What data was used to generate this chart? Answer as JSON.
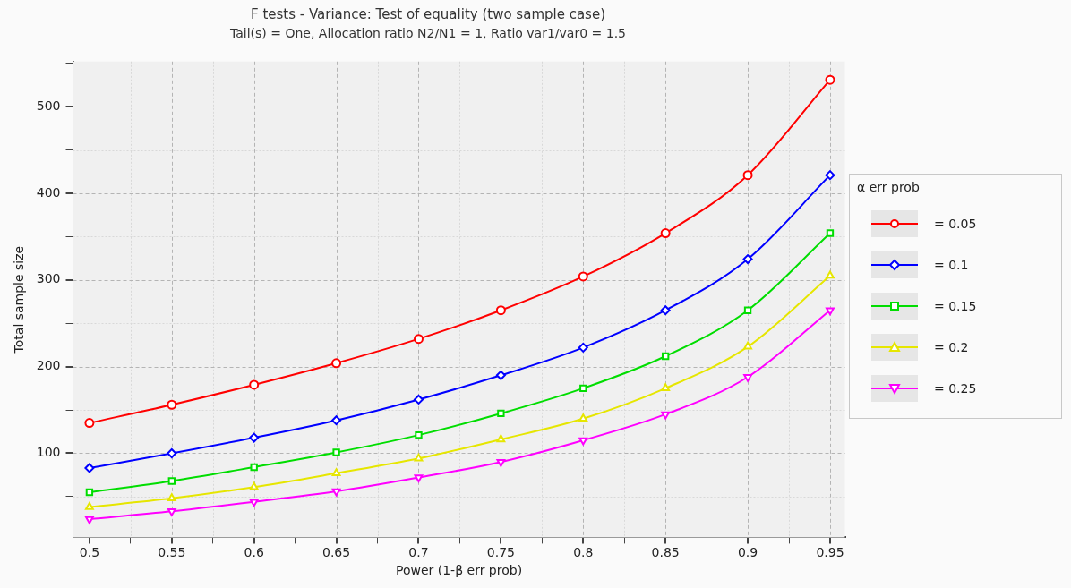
{
  "chart_data": {
    "type": "line",
    "title": "F tests - Variance: Test of equality (two sample case)",
    "subtitle": "Tail(s) = One, Allocation ratio N2/N1 = 1, Ratio var1/var0 = 1.5",
    "xlabel": "Power (1-β err prob)",
    "ylabel": "Total sample size",
    "legend_title": "α err prob",
    "legend": "right",
    "grid": true,
    "line_style": "solid",
    "x": [
      0.5,
      0.55,
      0.6,
      0.65,
      0.7,
      0.75,
      0.8,
      0.85,
      0.9,
      0.95
    ],
    "xlim": [
      0.49,
      0.959
    ],
    "xticks": [
      0.5,
      {
        "value": 0.525,
        "label": null
      },
      0.55,
      {
        "value": 0.575,
        "label": null
      },
      0.6,
      {
        "value": 0.625,
        "label": null
      },
      0.65,
      {
        "value": 0.675,
        "label": null
      },
      0.7,
      {
        "value": 0.725,
        "label": null
      },
      0.75,
      {
        "value": 0.775,
        "label": null
      },
      0.8,
      {
        "value": 0.825,
        "label": null
      },
      0.85,
      {
        "value": 0.875,
        "label": null
      },
      0.9,
      {
        "value": 0.925,
        "label": null
      },
      0.95
    ],
    "ylim": [
      3,
      552
    ],
    "yticks": [
      {
        "value": 50,
        "label": null
      },
      100,
      {
        "value": 150,
        "label": null
      },
      200,
      {
        "value": 250,
        "label": null
      },
      300,
      {
        "value": 350,
        "label": null
      },
      400,
      {
        "value": 450,
        "label": null
      },
      500,
      {
        "value": 550,
        "label": null
      }
    ],
    "series": [
      {
        "name": "= 0.05",
        "color": "#ff0000",
        "marker": "circle",
        "values": [
          135,
          156,
          179,
          204,
          232,
          265,
          304,
          354,
          421,
          531
        ]
      },
      {
        "name": "= 0.1",
        "color": "#0000ff",
        "marker": "diamond",
        "values": [
          83,
          100,
          118,
          138,
          162,
          190,
          222,
          265,
          324,
          421
        ]
      },
      {
        "name": "= 0.15",
        "color": "#00dd00",
        "marker": "square",
        "values": [
          55,
          68,
          84,
          101,
          121,
          146,
          175,
          212,
          265,
          354
        ]
      },
      {
        "name": "= 0.2",
        "color": "#e6e600",
        "marker": "triangle",
        "values": [
          38,
          48,
          61,
          77,
          94,
          116,
          140,
          175,
          223,
          305
        ]
      },
      {
        "name": "= 0.25",
        "color": "#ff00ff",
        "marker": "triangle_down",
        "values": [
          24,
          33,
          44,
          56,
          72,
          90,
          115,
          145,
          188,
          265
        ]
      }
    ]
  }
}
